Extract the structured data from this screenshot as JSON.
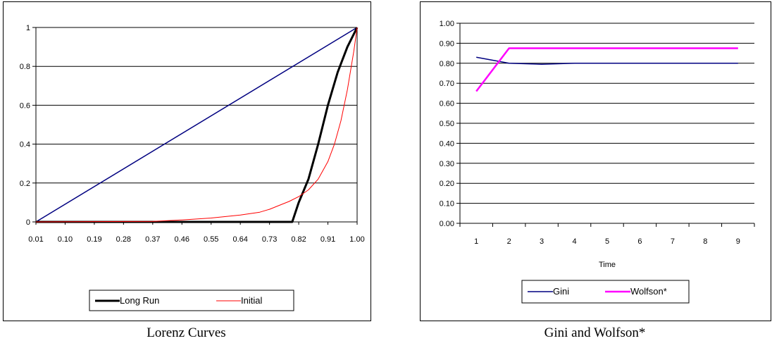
{
  "colors": {
    "long_run": "#000000",
    "initial": "#ff0000",
    "equality": "#000080",
    "gini": "#000080",
    "wolfson": "#ff00ff",
    "gridline": "#000000"
  },
  "captions": {
    "left": "Lorenz Curves",
    "right": "Gini and Wolfson*"
  },
  "chart_data": [
    {
      "type": "line",
      "title": "Lorenz Curves",
      "xlabel": "",
      "ylabel": "",
      "xlim": [
        0.01,
        1.0
      ],
      "ylim": [
        0,
        1
      ],
      "x_tick_labels": [
        "0.01",
        "0.10",
        "0.19",
        "0.28",
        "0.37",
        "0.46",
        "0.55",
        "0.64",
        "0.73",
        "0.82",
        "0.91",
        "1.00"
      ],
      "y_tick_labels": [
        "0",
        "0.2",
        "0.4",
        "0.6",
        "0.8",
        "1"
      ],
      "y_ticks": [
        0,
        0.2,
        0.4,
        0.6,
        0.8,
        1
      ],
      "grid": true,
      "legend": "bottom",
      "series": [
        {
          "name": "",
          "color": "equality",
          "x": [
            0.01,
            1.0
          ],
          "y": [
            0.0,
            1.0
          ]
        },
        {
          "name": "Long Run",
          "color": "long_run",
          "x": [
            0.01,
            0.8,
            0.82,
            0.85,
            0.88,
            0.91,
            0.94,
            0.97,
            1.0
          ],
          "y": [
            0.0,
            0.0,
            0.1,
            0.22,
            0.4,
            0.6,
            0.77,
            0.9,
            1.0
          ]
        },
        {
          "name": "Initial",
          "color": "initial",
          "x": [
            0.01,
            0.37,
            0.46,
            0.55,
            0.64,
            0.7,
            0.73,
            0.76,
            0.79,
            0.82,
            0.85,
            0.88,
            0.91,
            0.93,
            0.95,
            0.97,
            0.99,
            1.0
          ],
          "y": [
            0.0,
            0.003,
            0.01,
            0.02,
            0.035,
            0.05,
            0.065,
            0.085,
            0.105,
            0.13,
            0.165,
            0.22,
            0.31,
            0.4,
            0.52,
            0.68,
            0.88,
            1.0
          ]
        }
      ]
    },
    {
      "type": "line",
      "title": "Gini and Wolfson*",
      "xlabel": "Time",
      "ylabel": "",
      "categories": [
        "1",
        "2",
        "3",
        "4",
        "5",
        "6",
        "7",
        "8",
        "9"
      ],
      "ylim": [
        0,
        1
      ],
      "y_tick_labels": [
        "0.00",
        "0.10",
        "0.20",
        "0.30",
        "0.40",
        "0.50",
        "0.60",
        "0.70",
        "0.80",
        "0.90",
        "1.00"
      ],
      "y_ticks": [
        0,
        0.1,
        0.2,
        0.3,
        0.4,
        0.5,
        0.6,
        0.7,
        0.8,
        0.9,
        1.0
      ],
      "grid": true,
      "legend": "bottom",
      "series": [
        {
          "name": "Gini",
          "color": "gini",
          "values": [
            0.83,
            0.8,
            0.795,
            0.8,
            0.8,
            0.8,
            0.8,
            0.8,
            0.8
          ]
        },
        {
          "name": "Wolfson*",
          "color": "wolfson",
          "values": [
            0.66,
            0.875,
            0.875,
            0.875,
            0.875,
            0.875,
            0.875,
            0.875,
            0.875
          ]
        }
      ]
    }
  ]
}
